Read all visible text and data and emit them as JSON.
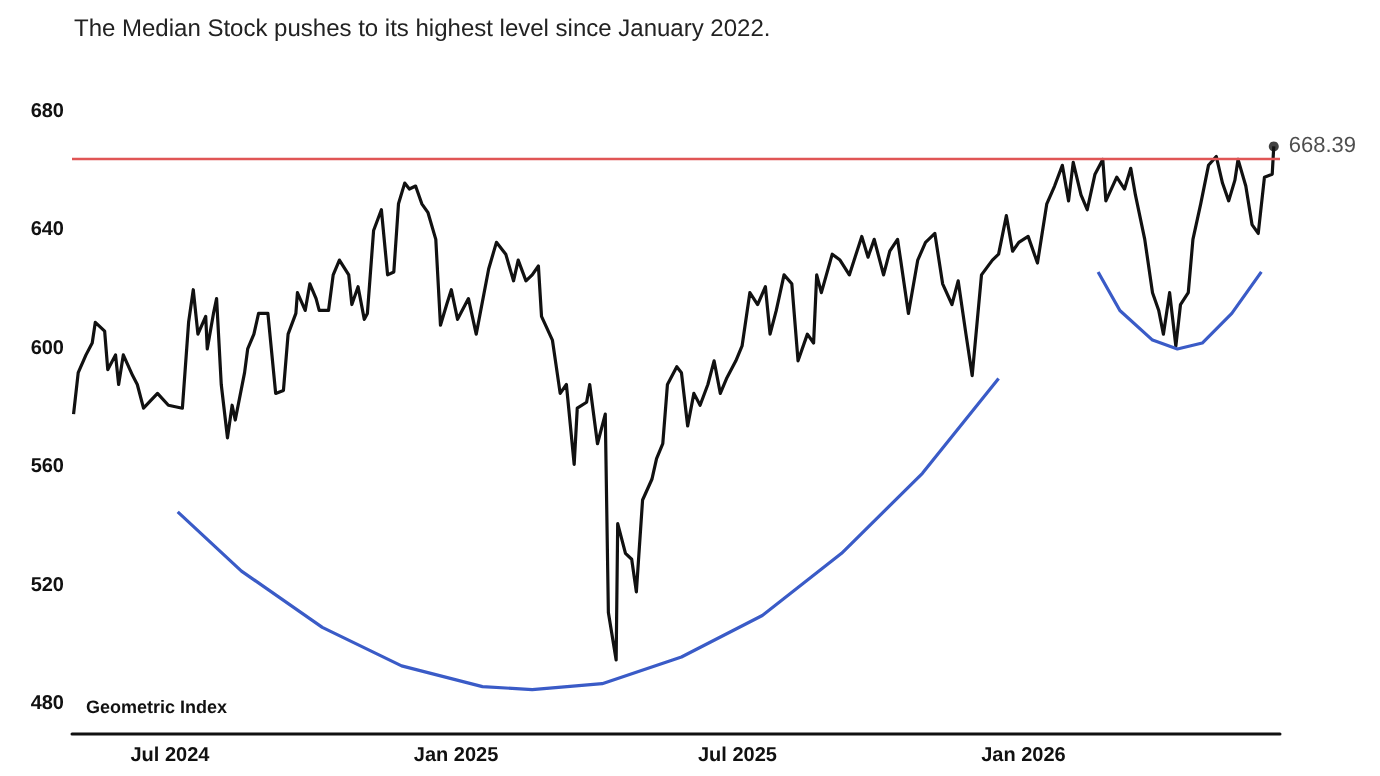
{
  "chart_data": {
    "type": "line",
    "title": "The Median Stock pushes to its highest level since January 2022.",
    "annotations": [
      "Geometric Index"
    ],
    "series": [
      {
        "color": "#111111",
        "x": [
          "2024-04-30",
          "2024-05-03",
          "2024-05-08",
          "2024-05-12",
          "2024-05-14",
          "2024-05-20",
          "2024-05-22",
          "2024-05-27",
          "2024-05-29",
          "2024-06-01",
          "2024-06-07",
          "2024-06-10",
          "2024-06-14",
          "2024-06-23",
          "2024-06-30",
          "2024-07-09",
          "2024-07-13",
          "2024-07-16",
          "2024-07-19",
          "2024-07-24",
          "2024-07-25",
          "2024-07-29",
          "2024-07-31",
          "2024-08-03",
          "2024-08-07",
          "2024-08-10",
          "2024-08-12",
          "2024-08-18",
          "2024-08-20",
          "2024-08-24",
          "2024-08-27",
          "2024-09-02",
          "2024-09-07",
          "2024-09-12",
          "2024-09-15",
          "2024-09-20",
          "2024-09-21",
          "2024-09-26",
          "2024-09-29",
          "2024-10-03",
          "2024-10-05",
          "2024-10-11",
          "2024-10-14",
          "2024-10-18",
          "2024-10-24",
          "2024-10-26",
          "2024-10-30",
          "2024-11-03",
          "2024-11-05",
          "2024-11-09",
          "2024-11-14",
          "2024-11-18",
          "2024-11-22",
          "2024-11-25",
          "2024-11-29",
          "2024-12-02",
          "2024-12-06",
          "2024-12-10",
          "2024-12-14",
          "2024-12-19",
          "2024-12-22",
          "2024-12-26",
          "2024-12-29",
          "2025-01-02",
          "2025-01-09",
          "2025-01-14",
          "2025-01-22",
          "2025-01-27",
          "2025-02-02",
          "2025-02-07",
          "2025-02-10",
          "2025-02-15",
          "2025-02-19",
          "2025-02-23",
          "2025-02-25",
          "2025-03-04",
          "2025-03-09",
          "2025-03-13",
          "2025-03-18",
          "2025-03-20",
          "2025-03-26",
          "2025-03-28",
          "2025-04-02",
          "2025-04-07",
          "2025-04-09",
          "2025-04-14",
          "2025-04-15",
          "2025-04-20",
          "2025-04-24",
          "2025-04-27",
          "2025-05-01",
          "2025-05-07",
          "2025-05-10",
          "2025-05-14",
          "2025-05-17",
          "2025-05-23",
          "2025-05-26",
          "2025-05-30",
          "2025-06-03",
          "2025-06-07",
          "2025-06-12",
          "2025-06-16",
          "2025-06-20",
          "2025-06-24",
          "2025-06-30",
          "2025-07-04",
          "2025-07-09",
          "2025-07-14",
          "2025-07-19",
          "2025-07-22",
          "2025-07-26",
          "2025-07-31",
          "2025-08-05",
          "2025-08-09",
          "2025-08-15",
          "2025-08-19",
          "2025-08-21",
          "2025-08-24",
          "2025-08-31",
          "2025-09-05",
          "2025-09-11",
          "2025-09-19",
          "2025-09-23",
          "2025-09-27",
          "2025-10-03",
          "2025-10-07",
          "2025-10-12",
          "2025-10-14",
          "2025-10-19",
          "2025-10-25",
          "2025-10-30",
          "2025-11-05",
          "2025-11-10",
          "2025-11-16",
          "2025-11-20",
          "2025-11-25",
          "2025-11-29",
          "2025-12-05",
          "2025-12-12",
          "2025-12-16",
          "2025-12-21",
          "2025-12-25",
          "2025-12-29",
          "2026-01-04",
          "2026-01-10",
          "2026-01-16",
          "2026-01-21",
          "2026-01-26",
          "2026-01-30",
          "2026-02-02",
          "2026-02-07",
          "2026-02-11",
          "2026-02-16",
          "2026-02-21",
          "2026-02-23",
          "2026-03-02",
          "2026-03-07",
          "2026-03-11",
          "2026-03-14",
          "2026-03-20",
          "2026-03-25",
          "2026-03-29",
          "2026-04-01",
          "2026-04-05",
          "2026-04-09",
          "2026-04-12",
          "2026-04-17",
          "2026-04-20",
          "2026-04-25",
          "2026-04-30",
          "2026-05-05",
          "2026-05-09",
          "2026-05-13",
          "2026-05-17",
          "2026-05-19",
          "2026-05-24",
          "2026-05-28",
          "2026-06-01",
          "2026-06-05",
          "2026-06-10",
          "2026-06-11"
        ],
        "values": [
          578,
          592,
          598,
          602,
          609,
          606,
          593,
          598,
          588,
          598,
          591,
          588,
          580,
          585,
          581,
          580,
          609,
          620,
          605,
          611,
          600,
          612,
          617,
          588,
          570,
          581,
          576,
          592,
          600,
          605,
          612,
          612,
          585,
          586,
          605,
          612,
          619,
          613,
          622,
          617,
          613,
          613,
          625,
          630,
          625,
          615,
          621,
          610,
          612,
          640,
          647,
          625,
          626,
          649,
          656,
          654,
          655,
          649,
          646,
          637,
          608,
          615,
          620,
          610,
          617,
          605,
          627,
          636,
          632,
          623,
          630,
          623,
          625,
          628,
          611,
          603,
          585,
          588,
          561,
          580,
          582,
          588,
          568,
          578,
          511,
          495,
          541,
          531,
          529,
          518,
          549,
          556,
          563,
          568,
          588,
          594,
          592,
          574,
          585,
          581,
          588,
          596,
          585,
          590,
          596,
          601,
          619,
          615,
          621,
          605,
          613,
          625,
          622,
          596,
          605,
          602,
          625,
          619,
          632,
          630,
          625,
          638,
          631,
          637,
          625,
          633,
          637,
          630,
          612,
          630,
          636,
          639,
          622,
          615,
          623,
          605,
          591,
          625,
          630,
          632,
          645,
          633,
          636,
          638,
          629,
          649,
          655,
          662,
          650,
          663,
          652,
          647,
          659,
          664,
          650,
          658,
          654,
          661,
          652,
          637,
          619,
          613,
          605,
          619,
          601,
          615,
          619,
          637,
          649,
          662,
          665,
          656,
          650,
          657,
          664,
          655,
          642,
          639,
          658,
          659,
          668.39
        ]
      },
      {
        "color": "#3a5bc7",
        "x": [
          "2024-07-06",
          "2024-08-16",
          "2024-10-07",
          "2024-11-27",
          "2025-01-18",
          "2025-02-19",
          "2025-04-05",
          "2025-05-26",
          "2025-07-17",
          "2025-09-06",
          "2025-10-28",
          "2025-12-16"
        ],
        "values": [
          545,
          525,
          506,
          493,
          486,
          485,
          487,
          496,
          510,
          531,
          558,
          590
        ]
      },
      {
        "color": "#3a5bc7",
        "x": [
          "2026-02-18",
          "2026-03-04",
          "2026-03-25",
          "2026-04-10",
          "2026-04-26",
          "2026-05-15",
          "2026-06-03"
        ],
        "values": [
          626,
          613,
          603,
          600,
          602,
          612,
          626
        ]
      },
      {
        "type": "scatter",
        "color": "#111111",
        "marker": "circle",
        "x": [
          "2026-06-11"
        ],
        "values": [
          668.39
        ],
        "value_labels": [
          "668.39"
        ]
      }
    ],
    "marker": "none",
    "line_style": "solid",
    "ref_lines": [
      {
        "axis": "y",
        "value": 664,
        "color": "#e05555"
      }
    ],
    "xlim": [
      "2024-04-29",
      "2026-06-15"
    ],
    "xticks": [
      {
        "value": "2024-07-01",
        "label": "Jul 2024"
      },
      {
        "value": "2025-01-01",
        "label": "Jan 2025"
      },
      {
        "value": "2025-07-01",
        "label": "Jul 2025"
      },
      {
        "value": "2026-01-01",
        "label": "Jan 2026"
      }
    ],
    "ylim": [
      470,
      680
    ],
    "yticks": [
      480,
      520,
      560,
      600,
      640,
      680
    ],
    "grid": false
  }
}
